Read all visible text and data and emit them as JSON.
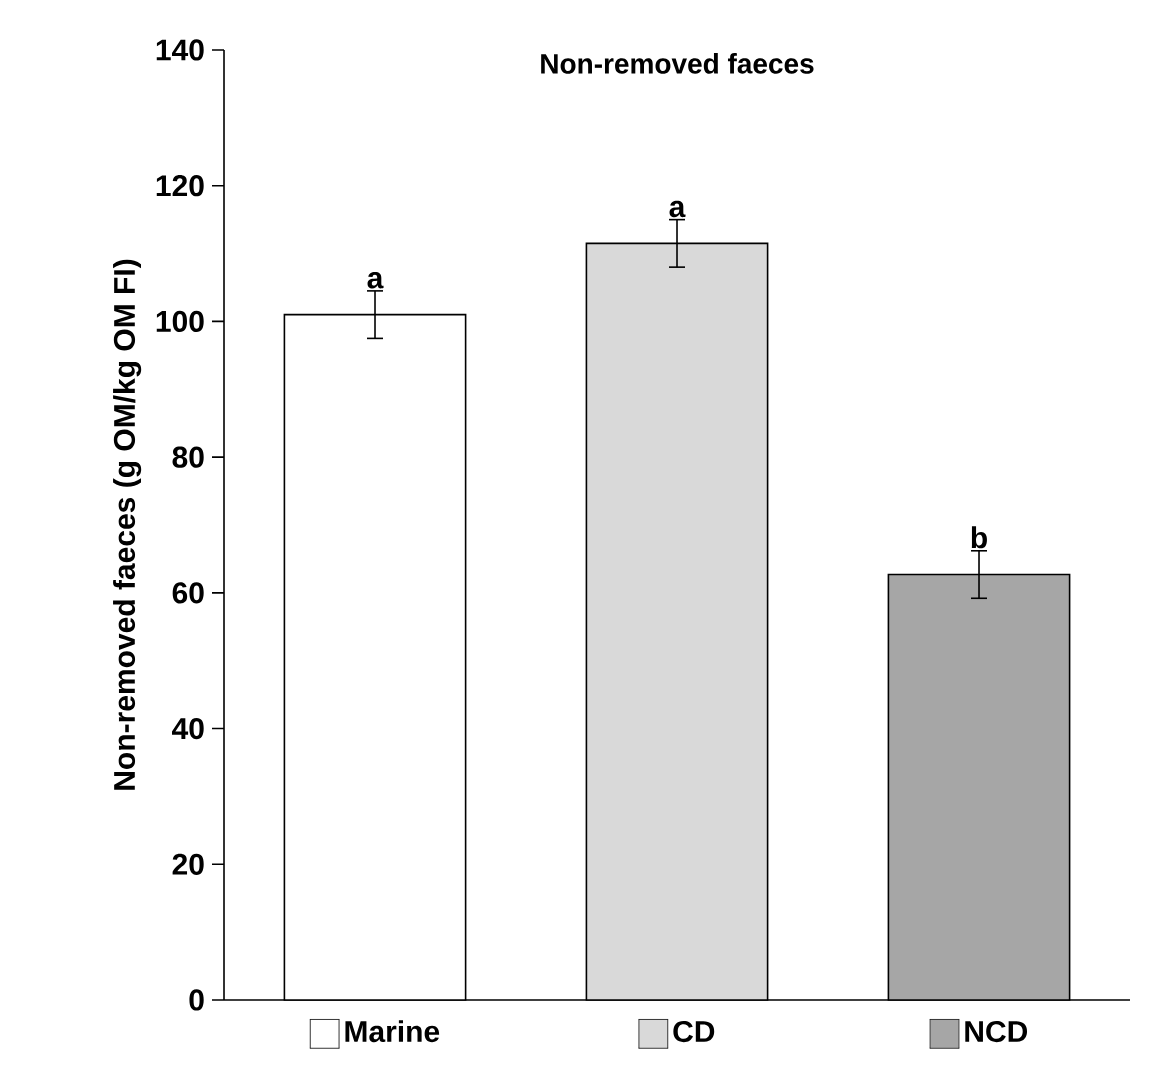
{
  "chart_data": {
    "type": "bar",
    "title": "Non-removed faeces",
    "ylabel": "Non-removed faeces (g OM/kg OM FI)",
    "categories": [
      "Marine",
      "CD",
      "NCD"
    ],
    "values": [
      101,
      111.5,
      62.7
    ],
    "errors": [
      3.5,
      3.5,
      3.5
    ],
    "colors": [
      "#ffffff",
      "#d9d9d9",
      "#a6a6a6"
    ],
    "annotations": [
      "a",
      "a",
      "b"
    ],
    "ylim": [
      0,
      140
    ],
    "yticks": [
      0,
      20,
      40,
      60,
      80,
      100,
      120,
      140
    ],
    "grid": false
  }
}
